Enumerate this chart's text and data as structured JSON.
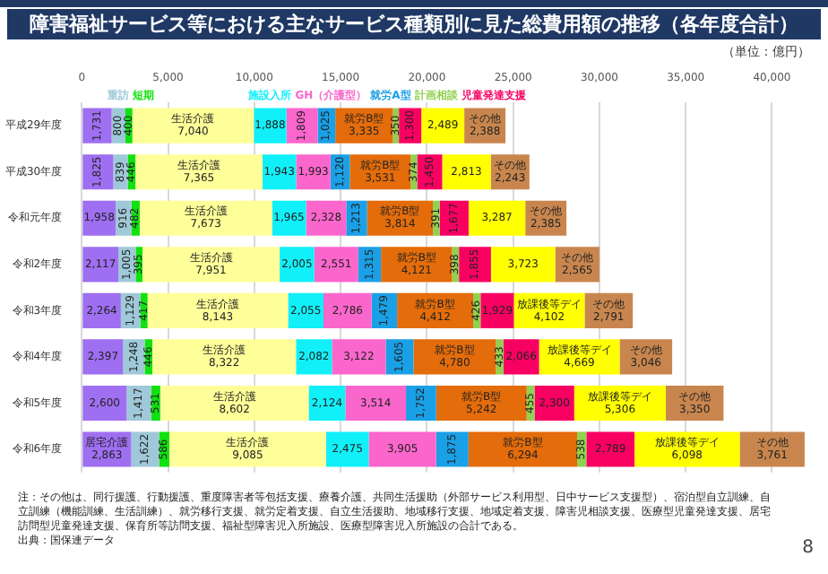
{
  "chart_data": {
    "type": "bar",
    "orientation": "horizontal",
    "stacked": true,
    "title": "障害福祉サービス等における主なサービス種類別に見た総費用額の推移（各年度合計）",
    "subtitle": "（単位：億円）",
    "categories": [
      "平成29年度",
      "平成30年度",
      "令和元年度",
      "令和2年度",
      "令和3年度",
      "令和4年度",
      "令和5年度",
      "令和6年度"
    ],
    "series": [
      {
        "name": "居宅介護",
        "color": "#9f6ff2",
        "values": [
          1731,
          1825,
          1958,
          2117,
          2264,
          2397,
          2600,
          2863
        ],
        "value_labels": [
          "1,731",
          "1,825",
          "1,958",
          "2,117",
          "2,264",
          "2,397",
          "2,600",
          "2,863"
        ]
      },
      {
        "name": "重訪",
        "color": "#9fc8d8",
        "values": [
          800,
          839,
          916,
          1005,
          1129,
          1248,
          1417,
          1622
        ],
        "value_labels": [
          "800",
          "839",
          "916",
          "1,005",
          "1,129",
          "1,248",
          "1,417",
          "1,622"
        ]
      },
      {
        "name": "短期",
        "color": "#11e011",
        "values": [
          400,
          446,
          482,
          395,
          417,
          446,
          531,
          586
        ],
        "value_labels": [
          "400",
          "446",
          "482",
          "395",
          "417",
          "446",
          "531",
          "586"
        ]
      },
      {
        "name": "生活介護",
        "color": "#ffff99",
        "values": [
          7040,
          7365,
          7673,
          7951,
          8143,
          8322,
          8602,
          9085
        ],
        "value_labels": [
          "7,040",
          "7,365",
          "7,673",
          "7,951",
          "8,143",
          "8,322",
          "8,602",
          "9,085"
        ]
      },
      {
        "name": "施設入所",
        "color": "#11f0f8",
        "values": [
          1888,
          1943,
          1965,
          2005,
          2055,
          2082,
          2124,
          2475
        ],
        "value_labels": [
          "1,888",
          "1,943",
          "1,965",
          "2,005",
          "2,055",
          "2,082",
          "2,124",
          "2,475"
        ]
      },
      {
        "name": "GH（介護型）",
        "color": "#fb66cc",
        "values": [
          1809,
          1993,
          2328,
          2551,
          2786,
          3122,
          3514,
          3905
        ],
        "value_labels": [
          "1,809",
          "1,993",
          "2,328",
          "2,551",
          "2,786",
          "3,122",
          "3,514",
          "3,905"
        ]
      },
      {
        "name": "就労A型",
        "color": "#1aa0e6",
        "values": [
          1025,
          1120,
          1213,
          1315,
          1479,
          1605,
          1752,
          1875
        ],
        "value_labels": [
          "1,025",
          "1,120",
          "1,213",
          "1,315",
          "1,479",
          "1,605",
          "1,752",
          "1,875"
        ]
      },
      {
        "name": "就労B型",
        "color": "#e46c0a",
        "values": [
          3335,
          3531,
          3814,
          4121,
          4412,
          4780,
          5242,
          6294
        ],
        "value_labels": [
          "3,335",
          "3,531",
          "3,814",
          "4,121",
          "4,412",
          "4,780",
          "5,242",
          "6,294"
        ]
      },
      {
        "name": "計画相談",
        "color": "#92d050",
        "values": [
          350,
          374,
          391,
          398,
          426,
          433,
          455,
          538
        ],
        "value_labels": [
          "350",
          "374",
          "391",
          "398",
          "426",
          "433",
          "455",
          "538"
        ]
      },
      {
        "name": "児童発達支援",
        "color": "#f80062",
        "values": [
          1300,
          1450,
          1677,
          1855,
          1929,
          2066,
          2300,
          2789
        ],
        "value_labels": [
          "1,300",
          "1,450",
          "1,677",
          "1,855",
          "1,929",
          "2,066",
          "2,300",
          "2,789"
        ]
      },
      {
        "name": "放課後等デイ",
        "color": "#ffff00",
        "values": [
          2489,
          2813,
          3287,
          3723,
          4102,
          4669,
          5306,
          6098
        ],
        "value_labels": [
          "2,489",
          "2,813",
          "3,287",
          "3,723",
          "4,102",
          "4,669",
          "5,306",
          "6,098"
        ]
      },
      {
        "name": "その他",
        "color": "#c8864e",
        "values": [
          2388,
          2243,
          2385,
          2565,
          2791,
          3046,
          3350,
          3761
        ],
        "value_labels": [
          "2,388",
          "2,243",
          "2,385",
          "2,565",
          "2,791",
          "3,046",
          "3,350",
          "3,761"
        ]
      }
    ],
    "xlim": [
      0,
      42000
    ],
    "xticks": [
      0,
      {
        "value": 5000,
        "label": "5,000"
      },
      {
        "value": 10000,
        "label": "10,000"
      },
      {
        "value": 15000,
        "label": "15,000"
      },
      {
        "value": 20000,
        "label": "20,000"
      },
      {
        "value": 25000,
        "label": "25,000"
      },
      {
        "value": 30000,
        "label": "30,000"
      },
      {
        "value": 35000,
        "label": "35,000"
      },
      {
        "value": 40000,
        "label": "40,000"
      }
    ],
    "grid": "x",
    "legend": false,
    "annotations": [
      "注：その他は、同行援護、行動援護、重度障害者等包括支援、療養介護、共同生活援助（外部サービス利用型、日中サービス支援型）、宿泊型自立訓練、自立訓練（機能訓練、生活訓練）、就労移行支援、就労定着支援、自立生活援助、地域移行支援、地域定着支援、障害児相談支援、医療型児童発達支援、居宅訪問型児童発達支援、保育所等訪問支援、福祉型障害児入所施設、医療型障害児入所施設の合計である。",
      "出典：国保連データ",
      "8"
    ]
  }
}
